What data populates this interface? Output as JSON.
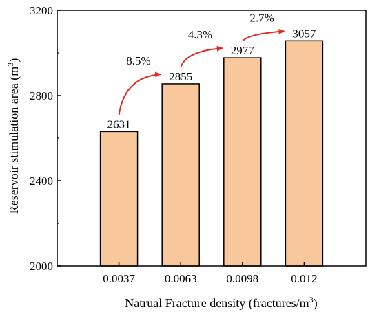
{
  "chart_data": {
    "type": "bar",
    "categories": [
      "0.0037",
      "0.0063",
      "0.0098",
      "0.012"
    ],
    "values": [
      2631,
      2855,
      2977,
      3057
    ],
    "data_labels": [
      "2631",
      "2855",
      "2977",
      "3057"
    ],
    "xlabel": "Natrual Fracture density (fractures/m",
    "xlabel_sup": "3",
    "xlabel_end": ")",
    "ylabel": "Reservoir stimulation area (m",
    "ylabel_sup": "3",
    "ylabel_end": ")",
    "ylim": [
      2000,
      3200
    ],
    "yticks": [
      "2000",
      "2400",
      "2800",
      "3200"
    ],
    "grid": false,
    "annotations": [
      {
        "from": 0,
        "to": 1,
        "text": "8.5%"
      },
      {
        "from": 1,
        "to": 2,
        "text": "4.3%"
      },
      {
        "from": 2,
        "to": 3,
        "text": "2.7%"
      }
    ],
    "colors": {
      "bar_fill": "#f8c79b",
      "bar_stroke": "#000000",
      "arrow": "#e8251f"
    }
  }
}
